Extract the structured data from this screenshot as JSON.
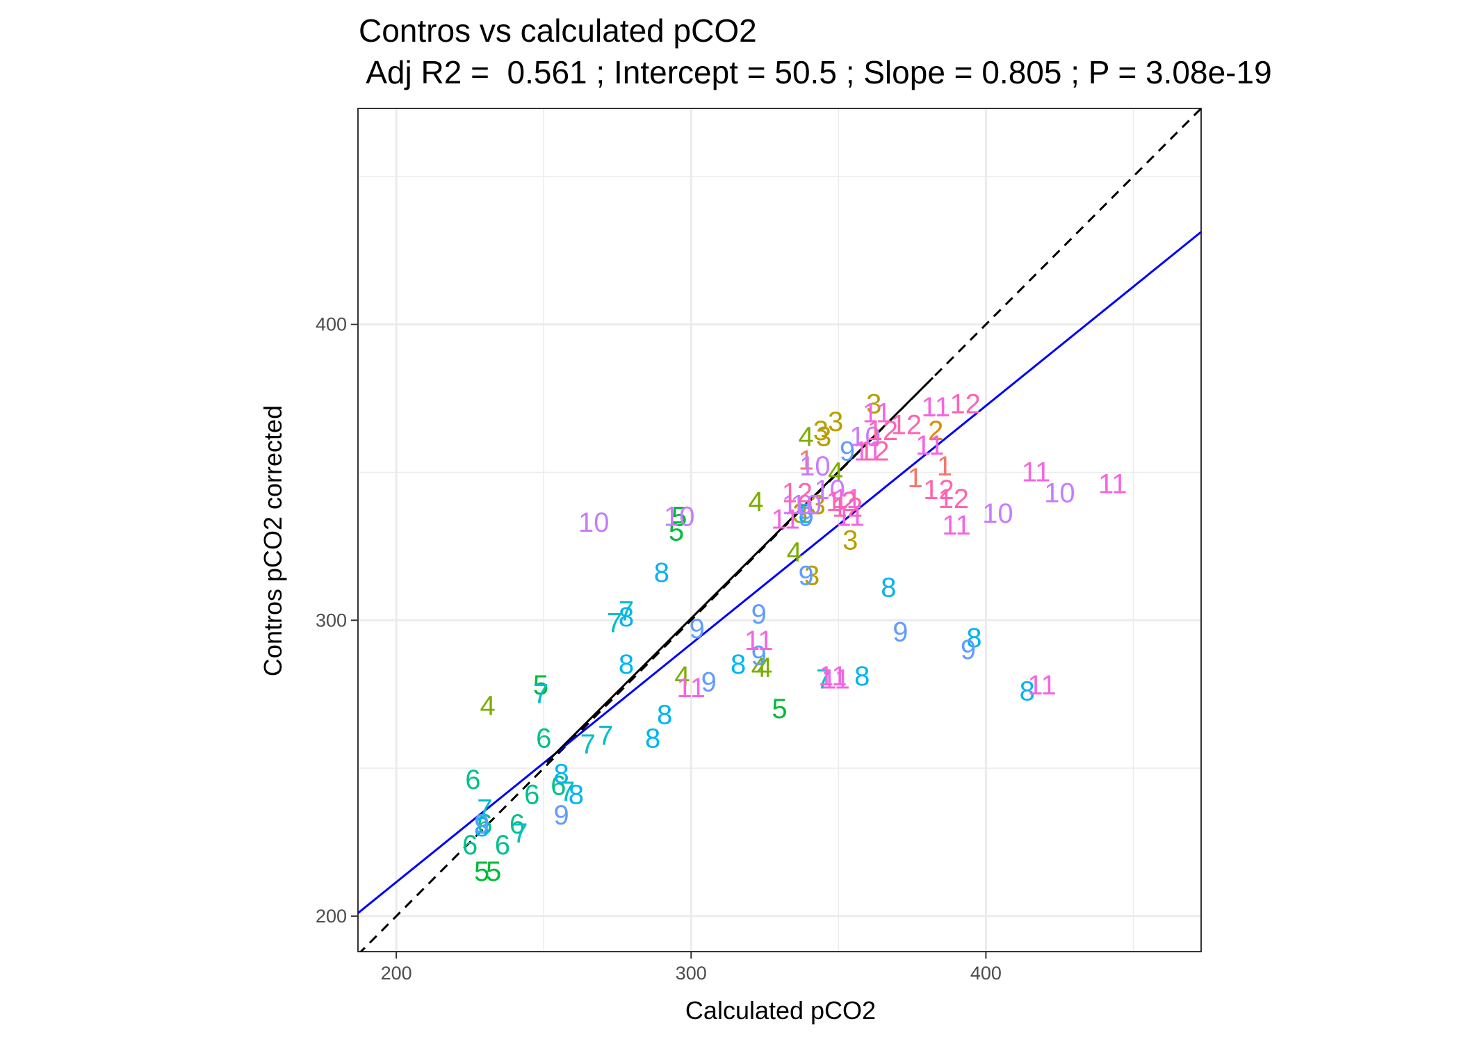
{
  "chart_data": {
    "type": "scatter",
    "title": "Contros vs calculated pCO2",
    "subtitle": " Adj R2 =  0.561 ; Intercept = 50.5 ; Slope = 0.805 ; P = 3.08e-19",
    "xlabel": "Calculated pCO2",
    "ylabel": "Contros pCO2 corrected",
    "xlim": [
      187,
      473
    ],
    "ylim": [
      188,
      473
    ],
    "xticks": [
      200,
      300,
      400
    ],
    "yticks": [
      200,
      300,
      400
    ],
    "grid": true,
    "legend": "none",
    "marker": "month number text",
    "group_colors": {
      "1": "#F8766D",
      "2": "#DE8C00",
      "3": "#B79F00",
      "4": "#7CAE00",
      "5": "#00BA38",
      "6": "#00C08B",
      "7": "#00BFC4",
      "8": "#00B4F0",
      "9": "#619CFF",
      "10": "#C77CFF",
      "11": "#F564E3",
      "12": "#FF64B0"
    },
    "points": [
      {
        "label": "1",
        "x": 376,
        "y": 348
      },
      {
        "label": "1",
        "x": 386,
        "y": 352
      },
      {
        "label": "1",
        "x": 339,
        "y": 354
      },
      {
        "label": "2",
        "x": 383,
        "y": 364
      },
      {
        "label": "3",
        "x": 362,
        "y": 373
      },
      {
        "label": "3",
        "x": 349,
        "y": 367
      },
      {
        "label": "3",
        "x": 344,
        "y": 364
      },
      {
        "label": "3",
        "x": 345,
        "y": 362
      },
      {
        "label": "3",
        "x": 354,
        "y": 327
      },
      {
        "label": "3",
        "x": 341,
        "y": 315
      },
      {
        "label": "3",
        "x": 343,
        "y": 339
      },
      {
        "label": "3",
        "x": 337,
        "y": 336
      },
      {
        "label": "4",
        "x": 339,
        "y": 362
      },
      {
        "label": "4",
        "x": 349,
        "y": 350
      },
      {
        "label": "4",
        "x": 322,
        "y": 340
      },
      {
        "label": "4",
        "x": 335,
        "y": 323
      },
      {
        "label": "4",
        "x": 323,
        "y": 284
      },
      {
        "label": "4",
        "x": 325,
        "y": 284
      },
      {
        "label": "4",
        "x": 297,
        "y": 281
      },
      {
        "label": "4",
        "x": 231,
        "y": 271
      },
      {
        "label": "5",
        "x": 296,
        "y": 335
      },
      {
        "label": "5",
        "x": 295,
        "y": 330
      },
      {
        "label": "5",
        "x": 249,
        "y": 278
      },
      {
        "label": "5",
        "x": 330,
        "y": 270
      },
      {
        "label": "5",
        "x": 229,
        "y": 215
      },
      {
        "label": "5",
        "x": 233,
        "y": 215
      },
      {
        "label": "6",
        "x": 250,
        "y": 260
      },
      {
        "label": "6",
        "x": 226,
        "y": 246
      },
      {
        "label": "6",
        "x": 255,
        "y": 244
      },
      {
        "label": "6",
        "x": 246,
        "y": 241
      },
      {
        "label": "6",
        "x": 230,
        "y": 231
      },
      {
        "label": "6",
        "x": 241,
        "y": 231
      },
      {
        "label": "6",
        "x": 225,
        "y": 224
      },
      {
        "label": "6",
        "x": 236,
        "y": 224
      },
      {
        "label": "7",
        "x": 278,
        "y": 303
      },
      {
        "label": "7",
        "x": 274,
        "y": 299
      },
      {
        "label": "7",
        "x": 249,
        "y": 275
      },
      {
        "label": "7",
        "x": 271,
        "y": 261
      },
      {
        "label": "7",
        "x": 265,
        "y": 258
      },
      {
        "label": "7",
        "x": 258,
        "y": 242
      },
      {
        "label": "7",
        "x": 230,
        "y": 236
      },
      {
        "label": "7",
        "x": 242,
        "y": 228
      },
      {
        "label": "7",
        "x": 345,
        "y": 280
      },
      {
        "label": "8",
        "x": 290,
        "y": 316
      },
      {
        "label": "8",
        "x": 278,
        "y": 301
      },
      {
        "label": "8",
        "x": 278,
        "y": 285
      },
      {
        "label": "8",
        "x": 316,
        "y": 285
      },
      {
        "label": "8",
        "x": 291,
        "y": 268
      },
      {
        "label": "8",
        "x": 287,
        "y": 260
      },
      {
        "label": "8",
        "x": 367,
        "y": 311
      },
      {
        "label": "8",
        "x": 396,
        "y": 294
      },
      {
        "label": "8",
        "x": 358,
        "y": 281
      },
      {
        "label": "8",
        "x": 256,
        "y": 248
      },
      {
        "label": "8",
        "x": 261,
        "y": 241
      },
      {
        "label": "8",
        "x": 229,
        "y": 230
      },
      {
        "label": "8",
        "x": 414,
        "y": 276
      },
      {
        "label": "8",
        "x": 339,
        "y": 336
      },
      {
        "label": "9",
        "x": 353,
        "y": 357
      },
      {
        "label": "9",
        "x": 339,
        "y": 335
      },
      {
        "label": "9",
        "x": 339,
        "y": 315
      },
      {
        "label": "9",
        "x": 323,
        "y": 302
      },
      {
        "label": "9",
        "x": 302,
        "y": 297
      },
      {
        "label": "9",
        "x": 323,
        "y": 288
      },
      {
        "label": "9",
        "x": 306,
        "y": 279
      },
      {
        "label": "9",
        "x": 371,
        "y": 296
      },
      {
        "label": "9",
        "x": 394,
        "y": 290
      },
      {
        "label": "9",
        "x": 256,
        "y": 234
      },
      {
        "label": "9",
        "x": 229,
        "y": 231
      },
      {
        "label": "10",
        "x": 359,
        "y": 362
      },
      {
        "label": "10",
        "x": 342,
        "y": 352
      },
      {
        "label": "10",
        "x": 347,
        "y": 344
      },
      {
        "label": "10",
        "x": 339,
        "y": 339
      },
      {
        "label": "10",
        "x": 336,
        "y": 339
      },
      {
        "label": "10",
        "x": 296,
        "y": 335
      },
      {
        "label": "10",
        "x": 267,
        "y": 333
      },
      {
        "label": "10",
        "x": 404,
        "y": 336
      },
      {
        "label": "10",
        "x": 425,
        "y": 343
      },
      {
        "label": "11",
        "x": 363,
        "y": 370
      },
      {
        "label": "11",
        "x": 383,
        "y": 372
      },
      {
        "label": "11",
        "x": 360,
        "y": 357
      },
      {
        "label": "11",
        "x": 381,
        "y": 359
      },
      {
        "label": "11",
        "x": 353,
        "y": 341
      },
      {
        "label": "11",
        "x": 354,
        "y": 335
      },
      {
        "label": "11",
        "x": 332,
        "y": 334
      },
      {
        "label": "11",
        "x": 390,
        "y": 332
      },
      {
        "label": "11",
        "x": 417,
        "y": 350
      },
      {
        "label": "11",
        "x": 443,
        "y": 346
      },
      {
        "label": "11",
        "x": 323,
        "y": 293
      },
      {
        "label": "11",
        "x": 300,
        "y": 277
      },
      {
        "label": "11",
        "x": 348,
        "y": 281
      },
      {
        "label": "11",
        "x": 349,
        "y": 280
      },
      {
        "label": "11",
        "x": 419,
        "y": 278
      },
      {
        "label": "12",
        "x": 393,
        "y": 373
      },
      {
        "label": "12",
        "x": 373,
        "y": 366
      },
      {
        "label": "12",
        "x": 365,
        "y": 364
      },
      {
        "label": "12",
        "x": 362,
        "y": 357
      },
      {
        "label": "12",
        "x": 384,
        "y": 344
      },
      {
        "label": "12",
        "x": 389,
        "y": 341
      },
      {
        "label": "12",
        "x": 336,
        "y": 343
      },
      {
        "label": "12",
        "x": 353,
        "y": 338
      },
      {
        "label": "12",
        "x": 351,
        "y": 340
      }
    ],
    "lines": [
      {
        "name": "1:1",
        "color": "#000000",
        "dash": true,
        "x": [
          187,
          473
        ],
        "y": [
          187,
          473
        ]
      },
      {
        "name": "fit",
        "color": "#0000ff",
        "dash": false,
        "slope": 0.805,
        "intercept": 50.5,
        "x": [
          187,
          473
        ]
      },
      {
        "name": "segment",
        "color": "#000000",
        "dash": false,
        "x": [
          251,
          382
        ],
        "y": [
          252,
          382
        ]
      }
    ]
  }
}
